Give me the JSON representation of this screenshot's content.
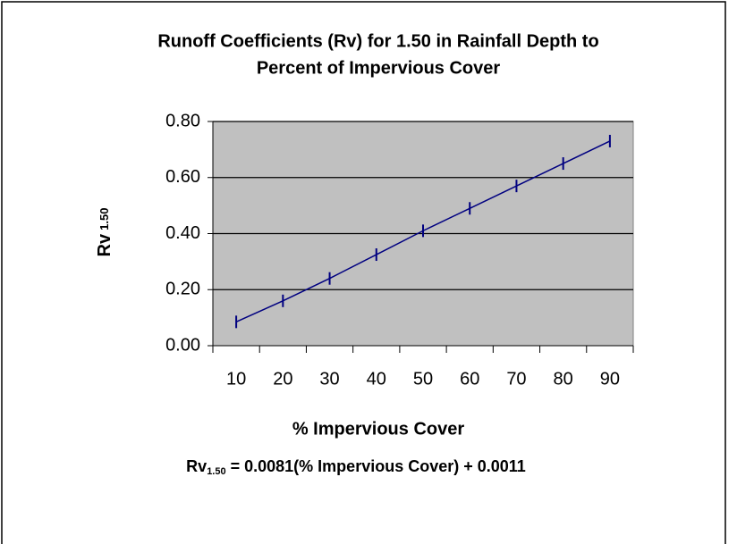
{
  "chart_data": {
    "type": "line",
    "title": [
      "Runoff Coefficients (Rv) for 1.50 in Rainfall Depth to",
      "Percent of Impervious Cover"
    ],
    "x_label": "% Impervious Cover",
    "y_label": {
      "text": "Rv",
      "subscript": "1.50"
    },
    "annotation": {
      "lhs": "Rv",
      "subscript": "1.50",
      "rhs": " = 0.0081(% Impervious Cover) + 0.0011"
    },
    "categories": [
      "10",
      "20",
      "30",
      "40",
      "50",
      "60",
      "70",
      "80",
      "90"
    ],
    "series": [
      {
        "name": "Rv",
        "color": "#000080",
        "values": [
          0.085,
          0.16,
          0.24,
          0.325,
          0.41,
          0.49,
          0.57,
          0.65,
          0.73
        ]
      }
    ],
    "ylim": [
      0,
      0.8
    ],
    "yticks": [
      {
        "value": 0,
        "label": "0.00"
      },
      {
        "value": 0.2,
        "label": "0.20"
      },
      {
        "value": 0.4,
        "label": "0.40"
      },
      {
        "value": 0.6,
        "label": "0.60"
      },
      {
        "value": 0.8,
        "label": "0.80"
      }
    ],
    "grid": true,
    "plot_background": "#c0c0c0"
  }
}
